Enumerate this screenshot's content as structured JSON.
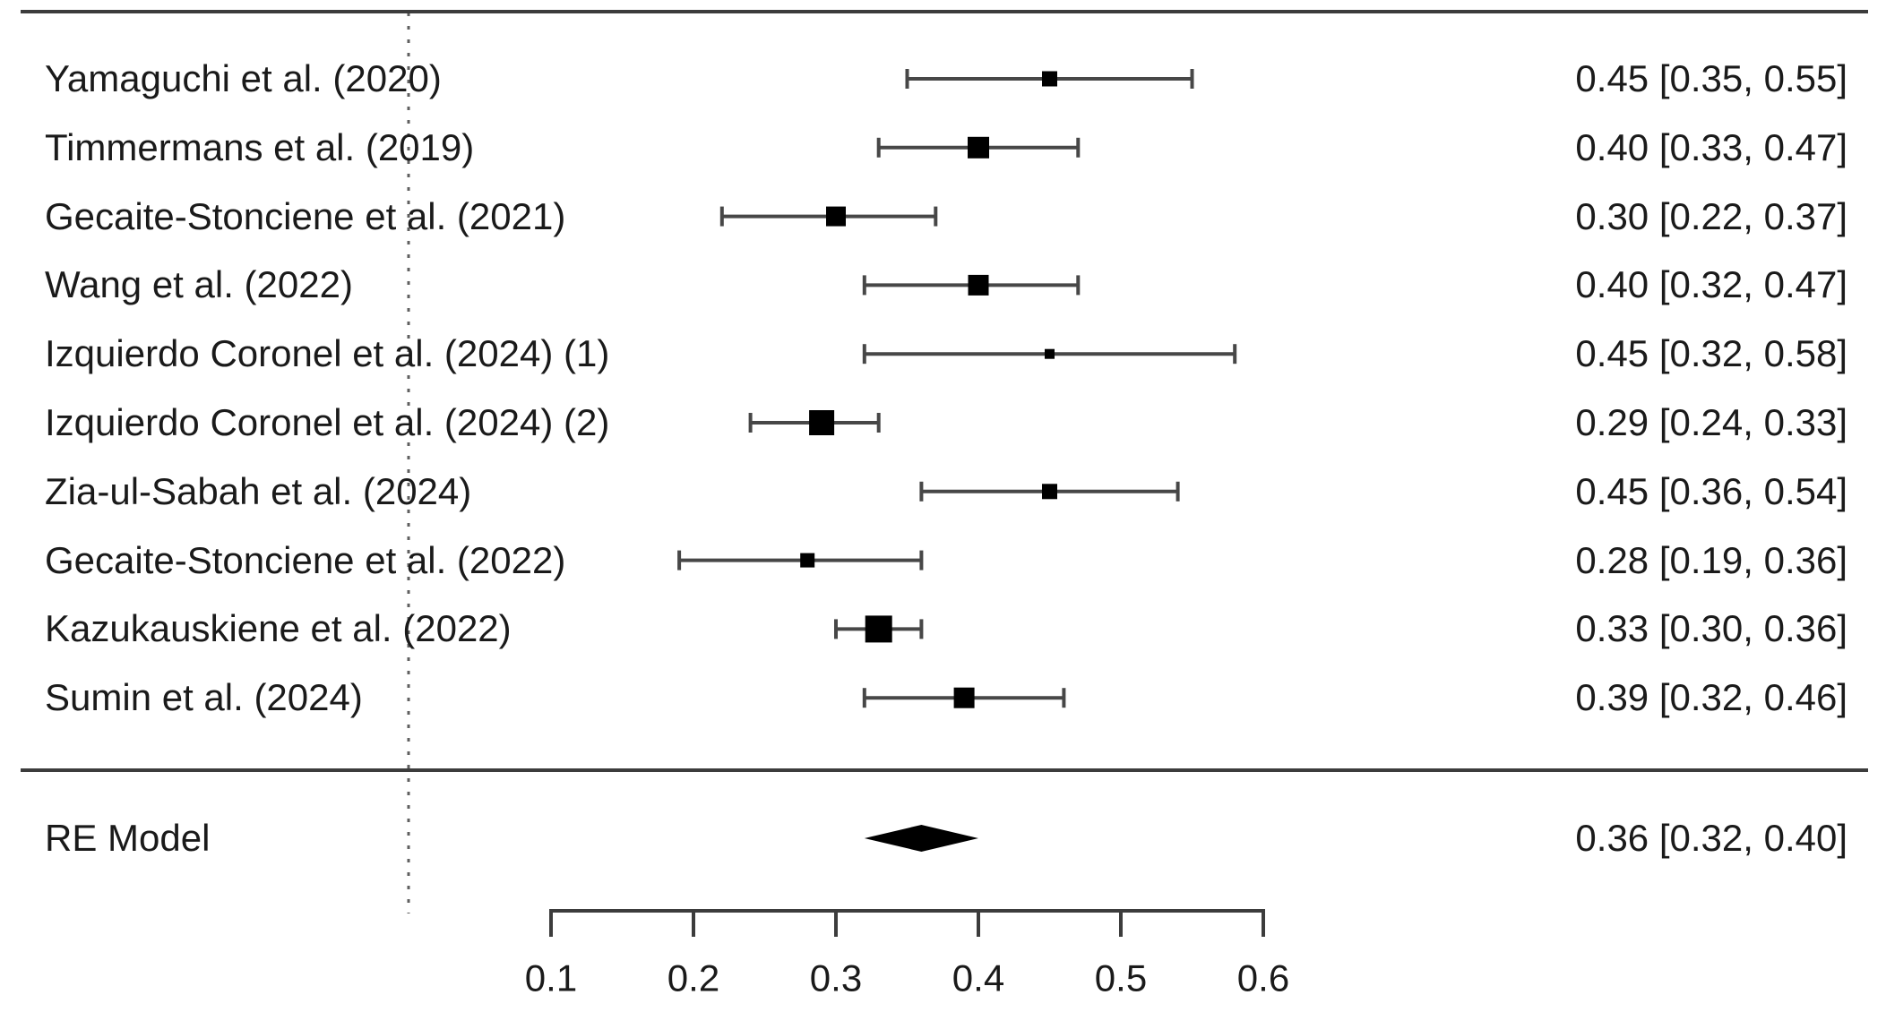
{
  "chart_data": {
    "type": "scatter",
    "subtype": "forest-plot",
    "title": "",
    "legend": null,
    "grid": false,
    "xlim": [
      0.1,
      0.6
    ],
    "refline_value": 0,
    "xaxis": {
      "ticks": [
        0.1,
        0.2,
        0.3,
        0.4,
        0.5,
        0.6
      ],
      "tick_labels": [
        "0.1",
        "0.2",
        "0.3",
        "0.4",
        "0.5",
        "0.6"
      ]
    },
    "studies": [
      {
        "label": "Yamaguchi et al. (2020)",
        "estimate": 0.45,
        "ci_lower": 0.35,
        "ci_upper": 0.55,
        "annotation": "0.45 [0.35, 0.55]",
        "square_size": 17
      },
      {
        "label": "Timmermans et al. (2019)",
        "estimate": 0.4,
        "ci_lower": 0.33,
        "ci_upper": 0.47,
        "annotation": "0.40 [0.33, 0.47]",
        "square_size": 24
      },
      {
        "label": "Gecaite-Stonciene et al. (2021)",
        "estimate": 0.3,
        "ci_lower": 0.22,
        "ci_upper": 0.37,
        "annotation": "0.30 [0.22, 0.37]",
        "square_size": 22
      },
      {
        "label": "Wang et al. (2022)",
        "estimate": 0.4,
        "ci_lower": 0.32,
        "ci_upper": 0.47,
        "annotation": "0.40 [0.32, 0.47]",
        "square_size": 23
      },
      {
        "label": "Izquierdo Coronel et al. (2024) (1)",
        "estimate": 0.45,
        "ci_lower": 0.32,
        "ci_upper": 0.58,
        "annotation": "0.45 [0.32, 0.58]",
        "square_size": 11
      },
      {
        "label": "Izquierdo Coronel et al. (2024) (2)",
        "estimate": 0.29,
        "ci_lower": 0.24,
        "ci_upper": 0.33,
        "annotation": "0.29 [0.24, 0.33]",
        "square_size": 28
      },
      {
        "label": "Zia-ul-Sabah et al. (2024)",
        "estimate": 0.45,
        "ci_lower": 0.36,
        "ci_upper": 0.54,
        "annotation": "0.45 [0.36, 0.54]",
        "square_size": 17
      },
      {
        "label": "Gecaite-Stonciene et al. (2022)",
        "estimate": 0.28,
        "ci_lower": 0.19,
        "ci_upper": 0.36,
        "annotation": "0.28 [0.19, 0.36]",
        "square_size": 16
      },
      {
        "label": "Kazukauskiene et al. (2022)",
        "estimate": 0.33,
        "ci_lower": 0.3,
        "ci_upper": 0.36,
        "annotation": "0.33 [0.30, 0.36]",
        "square_size": 30
      },
      {
        "label": "Sumin et al. (2024)",
        "estimate": 0.39,
        "ci_lower": 0.32,
        "ci_upper": 0.46,
        "annotation": "0.39 [0.32, 0.46]",
        "square_size": 23
      }
    ],
    "summary": {
      "label": "RE Model",
      "estimate": 0.36,
      "ci_lower": 0.32,
      "ci_upper": 0.4,
      "annotation": "0.36 [0.32, 0.40]"
    },
    "colors": {
      "text": "#1a1a1a",
      "rule": "#3c3c3c",
      "whisker": "#474747",
      "marker": "#000000",
      "refline": "#5f5f5f"
    }
  }
}
